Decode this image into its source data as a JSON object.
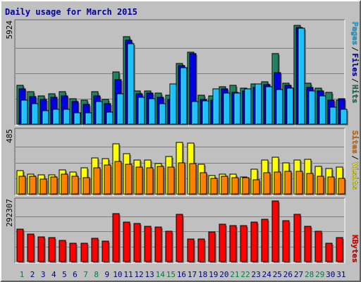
{
  "chart_data": [
    {
      "type": "bar",
      "title": "Daily usage for March 2015",
      "x": [
        "1",
        "2",
        "3",
        "4",
        "5",
        "6",
        "7",
        "8",
        "9",
        "10",
        "11",
        "12",
        "13",
        "14",
        "15",
        "16",
        "17",
        "18",
        "19",
        "20",
        "21",
        "22",
        "23",
        "24",
        "25",
        "26",
        "27",
        "28",
        "29",
        "30",
        "31"
      ],
      "weekend_days": [
        "1",
        "7",
        "8",
        "14",
        "15",
        "21",
        "22",
        "28",
        "29"
      ],
      "y_max_label": "5924",
      "ylim": [
        0,
        5924
      ],
      "series": [
        {
          "name": "Hits",
          "color": "#208060",
          "values": [
            2250,
            1900,
            1650,
            1750,
            1900,
            1500,
            1400,
            1900,
            1450,
            3050,
            5100,
            1950,
            1950,
            1800,
            1700,
            3550,
            4200,
            1700,
            1650,
            2200,
            2250,
            2100,
            2350,
            2450,
            4100,
            2400,
            5750,
            2400,
            2100,
            1850,
            1400
          ]
        },
        {
          "name": "Files",
          "color": "#0000e0",
          "values": [
            2050,
            1600,
            1450,
            1550,
            1650,
            1300,
            1150,
            1650,
            1200,
            2600,
            4900,
            1750,
            1800,
            1550,
            1450,
            3400,
            4100,
            1450,
            1400,
            2050,
            1850,
            1950,
            2150,
            2300,
            3000,
            2250,
            5650,
            2150,
            1950,
            1400,
            1500
          ]
        },
        {
          "name": "Pages",
          "color": "#20c0ff",
          "values": [
            1400,
            1200,
            800,
            850,
            850,
            650,
            650,
            1300,
            700,
            1750,
            4700,
            1550,
            1500,
            1200,
            2350,
            3300,
            1300,
            1350,
            2050,
            1800,
            1800,
            2050,
            2350,
            2200,
            2000,
            2100,
            5600,
            1950,
            1650,
            1000,
            850
          ]
        }
      ]
    },
    {
      "type": "bar",
      "x": [
        "1",
        "2",
        "3",
        "4",
        "5",
        "6",
        "7",
        "8",
        "9",
        "10",
        "11",
        "12",
        "13",
        "14",
        "15",
        "16",
        "17",
        "18",
        "19",
        "20",
        "21",
        "22",
        "23",
        "24",
        "25",
        "26",
        "27",
        "28",
        "29",
        "30",
        "31"
      ],
      "y_max_label": "485",
      "ylim": [
        0,
        485
      ],
      "series": [
        {
          "name": "Visits",
          "color": "#ffff00",
          "values": [
            180,
            150,
            145,
            145,
            185,
            170,
            200,
            280,
            270,
            385,
            310,
            260,
            260,
            235,
            290,
            400,
            395,
            230,
            140,
            155,
            150,
            130,
            190,
            260,
            285,
            240,
            260,
            265,
            210,
            195,
            205
          ]
        },
        {
          "name": "Sites",
          "color": "#ff8000",
          "values": [
            135,
            135,
            115,
            130,
            150,
            135,
            125,
            200,
            225,
            250,
            230,
            205,
            200,
            210,
            205,
            240,
            235,
            165,
            120,
            135,
            125,
            125,
            110,
            165,
            170,
            175,
            175,
            160,
            135,
            130,
            120
          ]
        }
      ]
    },
    {
      "type": "bar",
      "x": [
        "1",
        "2",
        "3",
        "4",
        "5",
        "6",
        "7",
        "8",
        "9",
        "10",
        "11",
        "12",
        "13",
        "14",
        "15",
        "16",
        "17",
        "18",
        "19",
        "20",
        "21",
        "22",
        "23",
        "24",
        "25",
        "26",
        "27",
        "28",
        "29",
        "30",
        "31"
      ],
      "y_max_label": "292307",
      "ylim": [
        0,
        292307
      ],
      "series": [
        {
          "name": "KBytes",
          "color": "#ff0000",
          "values": [
            158000,
            131000,
            119000,
            116000,
            103000,
            88000,
            88000,
            113000,
            99000,
            230000,
            192000,
            185000,
            170000,
            166000,
            145000,
            229000,
            108000,
            109000,
            143000,
            180000,
            172000,
            172000,
            191000,
            204000,
            292000,
            198000,
            229000,
            169000,
            146000,
            87000,
            117000
          ]
        }
      ]
    }
  ]
}
